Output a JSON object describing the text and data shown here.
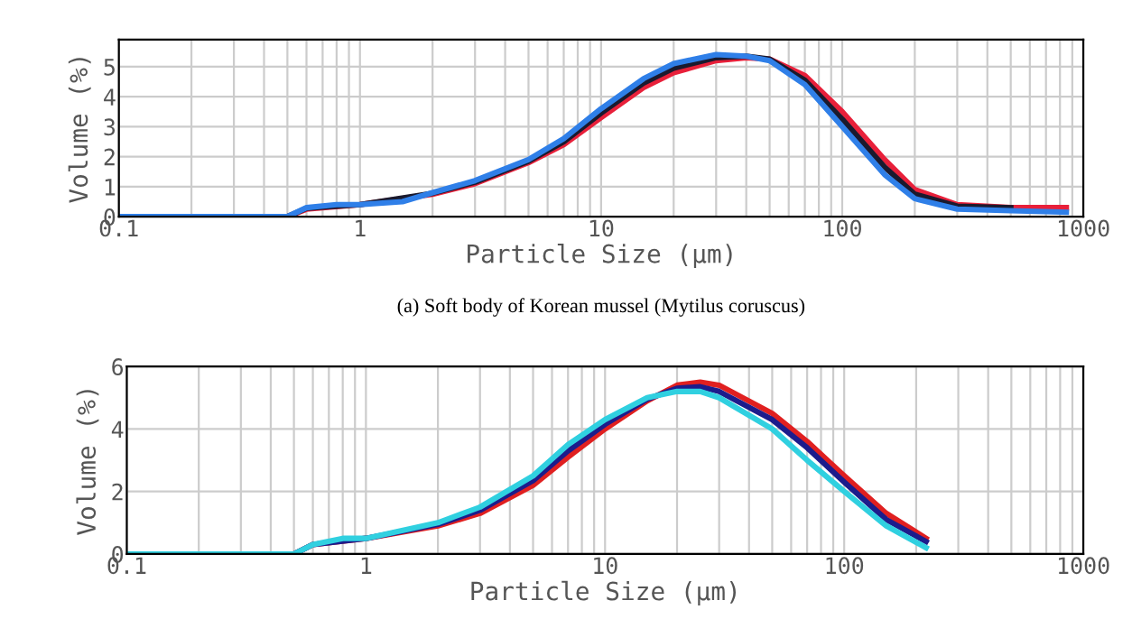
{
  "chart_data": [
    {
      "type": "line",
      "xlabel": "Particle Size (μm)",
      "ylabel": "Volume (%)",
      "log": "x",
      "grid": true,
      "xlim": [
        0.1,
        1000
      ],
      "xticks": [
        0.1,
        1,
        10,
        100,
        1000
      ],
      "ylim": [
        0,
        5.9
      ],
      "yticks": [
        0,
        1,
        2,
        3,
        4,
        5
      ],
      "annotations": [
        "(a) Soft body of Korean mussel (Mytilus coruscus)"
      ],
      "series": [
        {
          "color": "#e8203a",
          "x": [
            0.1,
            0.5,
            0.6,
            1,
            2,
            3,
            5,
            7,
            10,
            15,
            20,
            30,
            40,
            50,
            70,
            100,
            150,
            200,
            300,
            500,
            850
          ],
          "values": [
            0,
            0,
            0.25,
            0.4,
            0.75,
            1.1,
            1.8,
            2.4,
            3.3,
            4.3,
            4.8,
            5.2,
            5.3,
            5.25,
            4.7,
            3.5,
            1.9,
            0.9,
            0.4,
            0.3,
            0.3
          ]
        },
        {
          "color": "#1a1a2e",
          "x": [
            0.1,
            0.5,
            0.6,
            1,
            2,
            3,
            5,
            7,
            10,
            15,
            20,
            30,
            40,
            50,
            70,
            100,
            150,
            200,
            300,
            500
          ],
          "values": [
            0,
            0,
            0.28,
            0.4,
            0.78,
            1.15,
            1.85,
            2.5,
            3.45,
            4.45,
            4.95,
            5.3,
            5.35,
            5.25,
            4.55,
            3.25,
            1.65,
            0.75,
            0.35,
            0.3
          ]
        },
        {
          "color": "#2f7fe8",
          "x": [
            0.1,
            0.5,
            0.6,
            0.8,
            1,
            1.5,
            2,
            3,
            5,
            7,
            10,
            15,
            20,
            30,
            40,
            50,
            70,
            100,
            150,
            200,
            300,
            500,
            850
          ],
          "values": [
            0,
            0,
            0.3,
            0.4,
            0.4,
            0.5,
            0.8,
            1.2,
            1.9,
            2.6,
            3.6,
            4.6,
            5.1,
            5.4,
            5.35,
            5.2,
            4.4,
            3.0,
            1.4,
            0.6,
            0.25,
            0.2,
            0.15
          ]
        }
      ]
    },
    {
      "type": "line",
      "xlabel": "Particle Size (μm)",
      "ylabel": "Volume (%)",
      "log": "x",
      "grid": true,
      "xlim": [
        0.1,
        1000
      ],
      "xticks": [
        0.1,
        1,
        10,
        100,
        1000
      ],
      "ylim": [
        0,
        6
      ],
      "yticks": [
        0,
        2,
        4,
        6
      ],
      "series": [
        {
          "color": "#e02020",
          "x": [
            0.5,
            0.6,
            1,
            2,
            3,
            5,
            7,
            10,
            15,
            20,
            25,
            30,
            50,
            70,
            100,
            150,
            220
          ],
          "values": [
            0,
            0.3,
            0.5,
            0.9,
            1.3,
            2.2,
            3.1,
            4.0,
            4.9,
            5.4,
            5.5,
            5.4,
            4.5,
            3.6,
            2.5,
            1.3,
            0.5
          ]
        },
        {
          "color": "#1c1c8c",
          "x": [
            0.5,
            0.6,
            1,
            2,
            3,
            5,
            7,
            10,
            15,
            20,
            25,
            30,
            50,
            70,
            100,
            150,
            220
          ],
          "values": [
            0,
            0.3,
            0.5,
            0.95,
            1.4,
            2.35,
            3.3,
            4.15,
            4.95,
            5.3,
            5.35,
            5.2,
            4.3,
            3.4,
            2.3,
            1.1,
            0.4
          ]
        },
        {
          "color": "#30d0e0",
          "x": [
            0.1,
            0.5,
            0.6,
            0.8,
            1,
            2,
            3,
            5,
            7,
            10,
            15,
            20,
            25,
            30,
            50,
            70,
            100,
            150,
            220
          ],
          "values": [
            0,
            0,
            0.3,
            0.5,
            0.5,
            1.0,
            1.5,
            2.5,
            3.5,
            4.3,
            5.0,
            5.2,
            5.2,
            5.0,
            4.0,
            3.0,
            2.0,
            0.9,
            0.2
          ]
        }
      ]
    }
  ]
}
